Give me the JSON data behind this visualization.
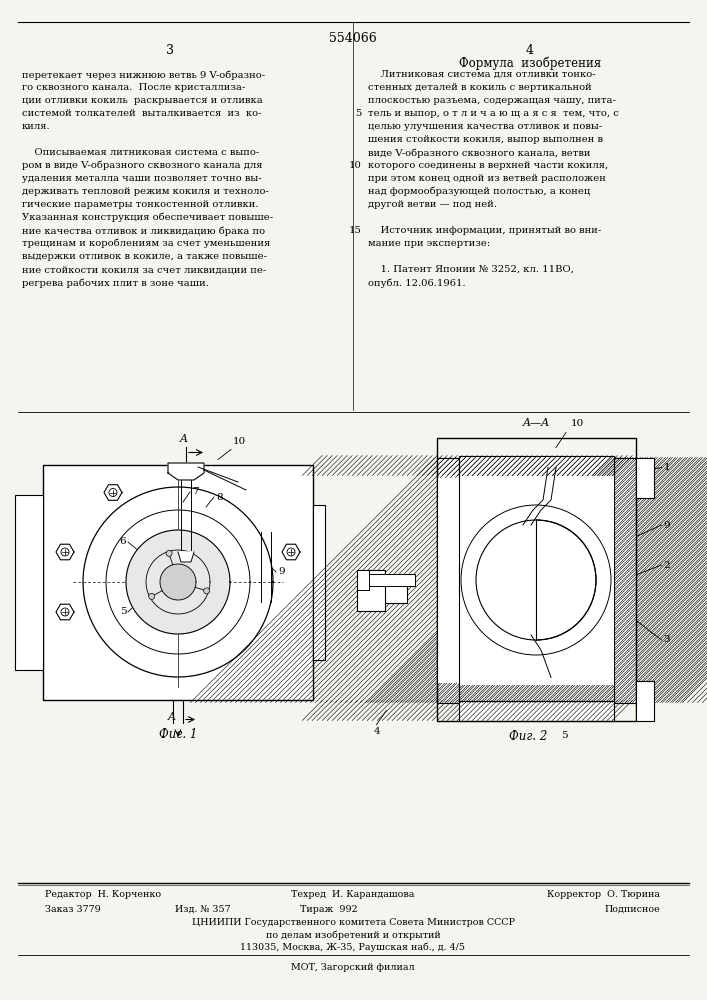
{
  "bg_color": "#f5f5f0",
  "title_number": "554066",
  "page_left": "3",
  "page_right": "4",
  "left_col_text": [
    "перетекает через нижнюю ветвь 9 V-образно-",
    "го сквозного канала.  После кристаллиза-",
    "ции отливки кокиль  раскрывается и отливка",
    "системой толкателей  выталкивается  из  ко-",
    "киля.",
    "",
    "    Описываемая литниковая система с выпо-",
    "ром в виде V-образного сквозного канала для",
    "удаления металла чаши позволяет точно вы-",
    "держивать тепловой режим кокиля и техноло-",
    "гические параметры тонкостенной отливки.",
    "Указанная конструкция обеспечивает повыше-",
    "ние качества отливок и ликвидацию брака по",
    "трещинам и короблениям за счет уменьшения",
    "выдержки отливок в кокиле, а также повыше-",
    "ние стойкости кокиля за счет ликвидации пе-",
    "регрева рабочих плит в зоне чаши."
  ],
  "right_col_header": "Формула  изобретения",
  "right_col_text": [
    "    Литниковая система для отливки тонко-",
    "стенных деталей в кокиль с вертикальной",
    "плоскостью разъема, содержащая чашу, пита-",
    "тель и выпор, о т л и ч а ю щ а я с я  тем, что, с",
    "целью улучшения качества отливок и повы-",
    "шения стойкости кокиля, выпор выполнен в",
    "виде V-образного сквозного канала, ветви",
    "которого соединены в верхней части кокиля,",
    "при этом конец одной из ветвей расположен",
    "над формообразующей полостью, а конец",
    "другой ветви — под ней.",
    "",
    "    Источник информации, принятый во вни-",
    "мание при экспертизе:",
    "",
    "    1. Патент Японии № 3252, кл. 11ВО,",
    "опубл. 12.06.1961."
  ],
  "fig1_label": "Фиг. 1",
  "fig2_label": "Фиг. 2",
  "footer_editor": "Редактор  Н. Корченко",
  "footer_techred": "Техред  И. Карандашова",
  "footer_corrector": "Корректор  О. Тюрина",
  "footer_order": "Заказ 3779",
  "footer_izd": "Изд. № 357",
  "footer_tirazh": "Тираж  992",
  "footer_podpisnoe": "Подписное",
  "footer_org": "ЦНИИПИ Государственного комитета Совета Министров СССР",
  "footer_dept": "по делам изобретений и открытий",
  "footer_address": "113035, Москва, Ж-35, Раушская наб., д. 4/5",
  "footer_mot": "МОТ, Загорский филиал"
}
